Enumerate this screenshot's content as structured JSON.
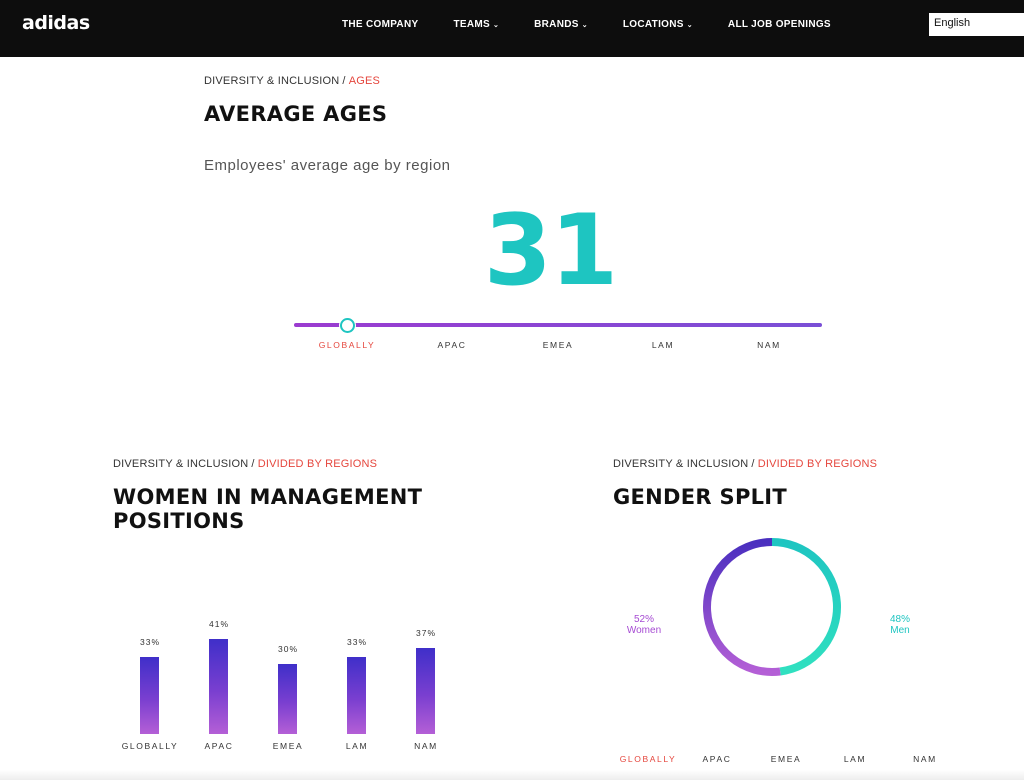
{
  "header": {
    "logo": "adidas",
    "nav": [
      {
        "label": "THE COMPANY",
        "dropdown": false
      },
      {
        "label": "TEAMS",
        "dropdown": true
      },
      {
        "label": "BRANDS",
        "dropdown": true
      },
      {
        "label": "LOCATIONS",
        "dropdown": true
      },
      {
        "label": "ALL JOB OPENINGS",
        "dropdown": false
      }
    ],
    "language": "English"
  },
  "ages": {
    "crumb_base": "DIVERSITY & INCLUSION",
    "crumb_sep": "/",
    "crumb_current": "AGES",
    "title": "AVERAGE AGES",
    "subtitle": "Employees' average age by region",
    "value": "31",
    "regions": [
      "GLOBALLY",
      "APAC",
      "EMEA",
      "LAM",
      "NAM"
    ],
    "selected_region": "GLOBALLY"
  },
  "women": {
    "crumb_base": "DIVERSITY & INCLUSION",
    "crumb_sep": "/",
    "crumb_current": "DIVIDED BY REGIONS",
    "title_line1": "WOMEN IN MANAGEMENT",
    "title_line2": "POSITIONS"
  },
  "gender": {
    "crumb_base": "DIVERSITY & INCLUSION",
    "crumb_sep": "/",
    "crumb_current": "DIVIDED BY REGIONS",
    "title": "GENDER SPLIT",
    "regions": [
      "GLOBALLY",
      "APAC",
      "EMEA",
      "LAM",
      "NAM"
    ],
    "selected_region": "GLOBALLY"
  },
  "chart_data": [
    {
      "type": "bar",
      "categories": [
        "GLOBALLY",
        "APAC",
        "EMEA",
        "LAM",
        "NAM"
      ],
      "values": [
        33,
        41,
        30,
        33,
        37
      ],
      "value_labels": [
        "33%",
        "41%",
        "30%",
        "33%",
        "37%"
      ],
      "title": "WOMEN IN MANAGEMENT POSITIONS",
      "xlabel": "",
      "ylabel": "",
      "ylim": [
        0,
        50
      ]
    },
    {
      "type": "pie",
      "categories": [
        "Women",
        "Men"
      ],
      "values": [
        52,
        48
      ],
      "value_labels": [
        "52%",
        "48%"
      ],
      "colors": [
        "#a64bd3",
        "#1ec5c1"
      ],
      "title": "GENDER SPLIT"
    }
  ],
  "colors": {
    "accent": "#e5463d",
    "teal": "#1ec5c1",
    "purple": "#7a3fd0",
    "header_bg": "#0d0d0d"
  }
}
